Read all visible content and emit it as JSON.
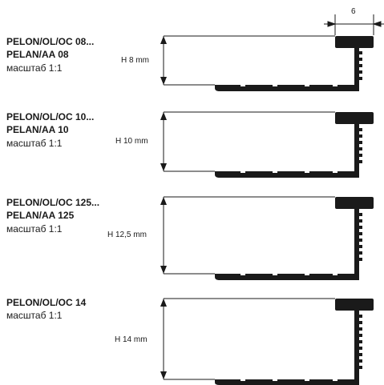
{
  "top_dimension": "6",
  "profiles": [
    {
      "lines": [
        "PELON/OL/OC 08...",
        "PELAN/AA 08"
      ],
      "scale": "масштаб 1:1",
      "height_label": "H 8 mm"
    },
    {
      "lines": [
        "PELON/OL/OC 10...",
        "PELAN/AA 10"
      ],
      "scale": "масштаб 1:1",
      "height_label": "H 10 mm"
    },
    {
      "lines": [
        "PELON/OL/OC 125...",
        "PELAN/AA 125"
      ],
      "scale": "масштаб 1:1",
      "height_label": "H 12,5 mm"
    },
    {
      "lines": [
        "PELON/OL/OC 14"
      ],
      "scale": "масштаб 1:1",
      "height_label": "H 14 mm"
    }
  ]
}
